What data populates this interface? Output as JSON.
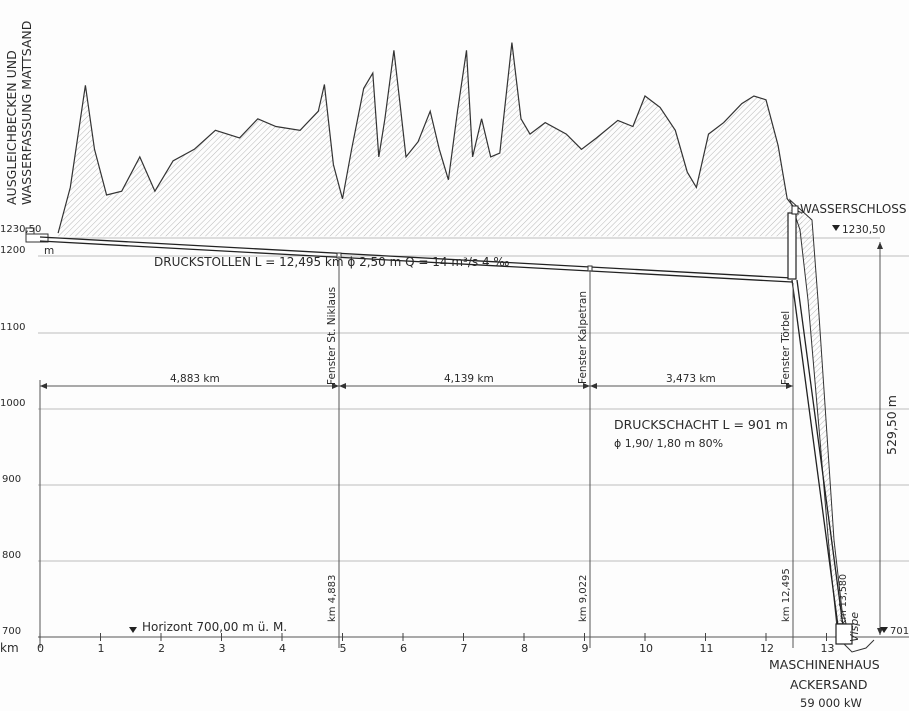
{
  "top_left_label": [
    "AUSGLEICHBECKEN UND",
    "WASSERFASSUNG MATTSAND"
  ],
  "top_right_label": "WASSERSCHLOSS",
  "level_left": "1230,50",
  "level_right": "1230,50",
  "unit_m": "m",
  "stollen_label": "DRUCKSTOLLEN  L = 12,495 km   ϕ 2,50 m   Q = 14 m³/s   4 ‰",
  "schacht_label_1": "DRUCKSCHACHT  L = 901 m",
  "schacht_label_2": "ϕ 1,90/ 1,80 m   80%",
  "height_diff": "529,50 m",
  "horizon_label": "Horizont  700,00 m ü. M.",
  "right_level_low": "701,0",
  "vispe": "Vispe",
  "km_13580": "km 13,580",
  "powerhouse": [
    "MASCHINENHAUS",
    "ACKERSAND",
    "59 000 kW"
  ],
  "elevation_ticks": [
    "1200",
    "1100",
    "1000",
    "900",
    "800",
    "700"
  ],
  "km_axis_label": "km",
  "km_ticks": [
    "0",
    "1",
    "2",
    "3",
    "4",
    "5",
    "6",
    "7",
    "8",
    "9",
    "10",
    "11",
    "12",
    "13"
  ],
  "windows": [
    {
      "name": "Fenster St. Niklaus",
      "km": "km 4,883"
    },
    {
      "name": "Fenster Kalpetran",
      "km": "km 9,022"
    },
    {
      "name": "Fenster Törbel",
      "km": "km 12,495"
    }
  ],
  "distances": [
    "4,883 km",
    "4,139 km",
    "3,473 km"
  ],
  "terrain_profile": [
    [
      0.3,
      1230
    ],
    [
      0.5,
      1290
    ],
    [
      0.75,
      1424
    ],
    [
      0.9,
      1340
    ],
    [
      1.1,
      1280
    ],
    [
      1.35,
      1285
    ],
    [
      1.65,
      1330
    ],
    [
      1.9,
      1285
    ],
    [
      2.2,
      1325
    ],
    [
      2.55,
      1340
    ],
    [
      2.9,
      1365
    ],
    [
      3.3,
      1355
    ],
    [
      3.6,
      1380
    ],
    [
      3.9,
      1370
    ],
    [
      4.3,
      1365
    ],
    [
      4.6,
      1390
    ],
    [
      4.7,
      1425
    ],
    [
      4.85,
      1320
    ],
    [
      5.0,
      1275
    ],
    [
      5.15,
      1340
    ],
    [
      5.35,
      1420
    ],
    [
      5.5,
      1440
    ],
    [
      5.6,
      1330
    ],
    [
      5.7,
      1380
    ],
    [
      5.85,
      1470
    ],
    [
      5.95,
      1400
    ],
    [
      6.05,
      1330
    ],
    [
      6.25,
      1350
    ],
    [
      6.45,
      1390
    ],
    [
      6.6,
      1340
    ],
    [
      6.75,
      1300
    ],
    [
      6.9,
      1390
    ],
    [
      7.05,
      1470
    ],
    [
      7.15,
      1330
    ],
    [
      7.3,
      1380
    ],
    [
      7.45,
      1330
    ],
    [
      7.6,
      1335
    ],
    [
      7.8,
      1480
    ],
    [
      7.95,
      1380
    ],
    [
      8.1,
      1360
    ],
    [
      8.35,
      1375
    ],
    [
      8.7,
      1360
    ],
    [
      8.95,
      1340
    ],
    [
      9.2,
      1355
    ],
    [
      9.55,
      1378
    ],
    [
      9.8,
      1370
    ],
    [
      10.0,
      1410
    ],
    [
      10.25,
      1395
    ],
    [
      10.5,
      1365
    ],
    [
      10.7,
      1310
    ],
    [
      10.85,
      1290
    ],
    [
      11.05,
      1360
    ],
    [
      11.3,
      1375
    ],
    [
      11.6,
      1400
    ],
    [
      11.8,
      1410
    ],
    [
      12.0,
      1405
    ],
    [
      12.2,
      1345
    ],
    [
      12.35,
      1275
    ],
    [
      12.5,
      1260
    ],
    [
      12.6,
      1256
    ]
  ],
  "colors": {
    "ink": "#333333",
    "grid": "#bdbdbd",
    "hatch": "#8a8a8a"
  }
}
